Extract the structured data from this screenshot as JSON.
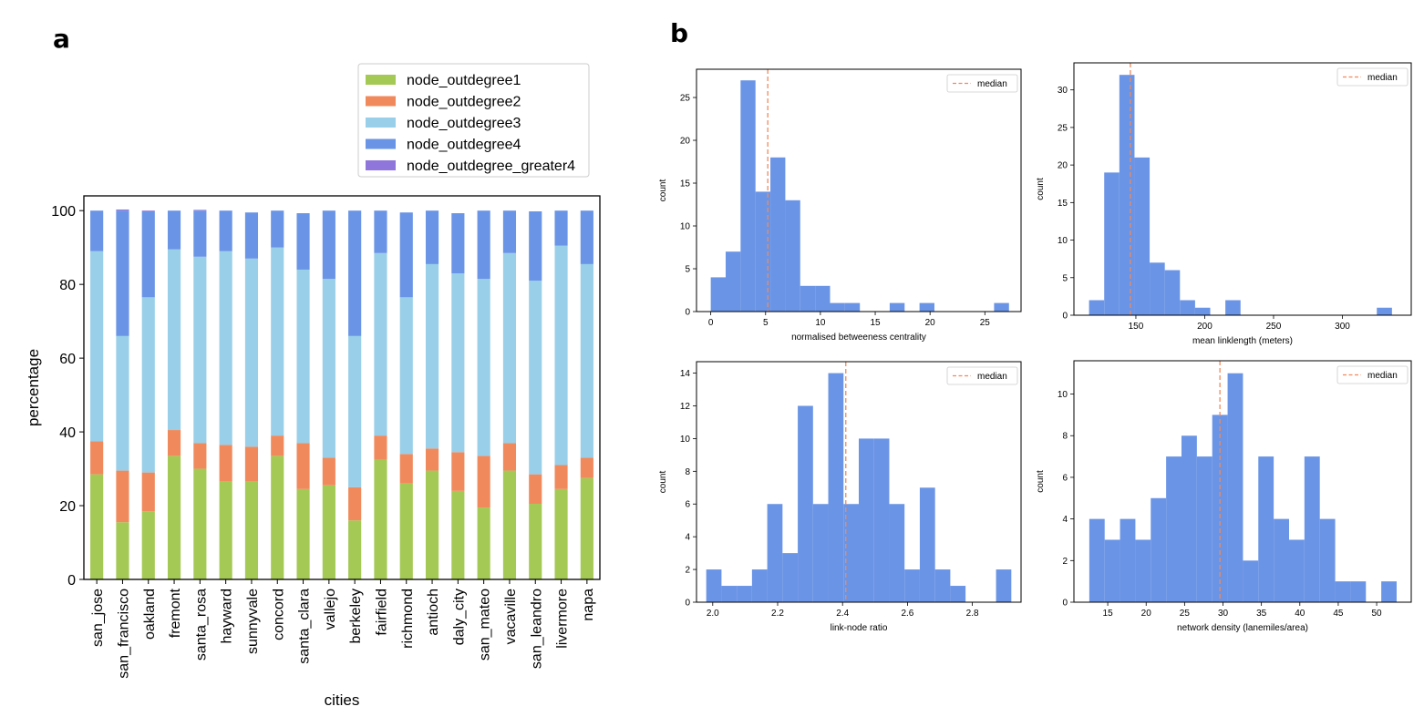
{
  "panels": {
    "a": "a",
    "b": "b"
  },
  "colors": {
    "outdeg1": "#a4c955",
    "outdeg2": "#f08a5d",
    "outdeg3": "#99cfe8",
    "outdeg4": "#6a94e5",
    "outdeg_g4": "#8f76da",
    "hist": "#6a94e5",
    "median": "#f08a5d"
  },
  "chart_data": [
    {
      "type": "bar",
      "stacked": true,
      "title": "",
      "xlabel": "cities",
      "ylabel": "percentage",
      "ylim": [
        0,
        104
      ],
      "yticks": [
        0,
        20,
        40,
        60,
        80,
        100
      ],
      "legend_position": "top-right",
      "categories": [
        "san_jose",
        "san_francisco",
        "oakland",
        "fremont",
        "santa_rosa",
        "hayward",
        "sunnyvale",
        "concord",
        "santa_clara",
        "vallejo",
        "berkeley",
        "fairfield",
        "richmond",
        "antioch",
        "daly_city",
        "san_mateo",
        "vacaville",
        "san_leandro",
        "livermore",
        "napa"
      ],
      "series": [
        {
          "name": "node_outdegree1",
          "values": [
            28.5,
            15.5,
            18.5,
            33.5,
            30,
            26.5,
            26.5,
            33.5,
            24.5,
            25.5,
            16,
            32.5,
            26,
            29.5,
            24,
            19.5,
            29.5,
            20.5,
            24.5,
            27.5
          ]
        },
        {
          "name": "node_outdegree2",
          "values": [
            9,
            14,
            10.5,
            7,
            7,
            10,
            9.5,
            5.5,
            12.5,
            7.5,
            9,
            6.5,
            8,
            6,
            10.5,
            14,
            7.5,
            8,
            6.5,
            5.5
          ]
        },
        {
          "name": "node_outdegree3",
          "values": [
            51.5,
            36.5,
            47.5,
            49,
            50.5,
            52.5,
            51,
            51,
            47,
            48.5,
            41,
            49.5,
            42.5,
            50,
            48.5,
            48,
            51.5,
            52.5,
            59.5,
            52.5
          ]
        },
        {
          "name": "node_outdegree4",
          "values": [
            11,
            34,
            23.3,
            10.5,
            12.5,
            11,
            12.5,
            10,
            15.3,
            18.5,
            34,
            11.5,
            23,
            14.5,
            16.3,
            18.5,
            11.5,
            18.8,
            9.5,
            14.5
          ]
        },
        {
          "name": "node_outdegree_greater4",
          "values": [
            0,
            0.3,
            0.2,
            0,
            0.2,
            0,
            0,
            0,
            0,
            0,
            0,
            0,
            0,
            0,
            0,
            0,
            0,
            0,
            0,
            0
          ]
        }
      ]
    },
    {
      "type": "bar",
      "subtype": "histogram",
      "xlabel": "normalised betweeness centrality",
      "ylabel": "count",
      "xlim": [
        -1.3,
        28.3
      ],
      "ylim": [
        0,
        28.3
      ],
      "xticks": [
        0,
        5,
        10,
        15,
        20,
        25
      ],
      "yticks": [
        0,
        5,
        10,
        15,
        20,
        25
      ],
      "bin_edges": [
        0,
        1.36,
        2.72,
        4.08,
        5.44,
        6.8,
        8.16,
        9.52,
        10.88,
        12.24,
        13.6,
        14.96,
        16.32,
        17.68,
        19.04,
        20.4,
        21.76,
        23.12,
        24.48,
        25.84,
        27.2
      ],
      "counts": [
        4,
        7,
        27,
        14,
        18,
        13,
        3,
        3,
        1,
        1,
        0,
        0,
        1,
        0,
        1,
        0,
        0,
        0,
        0,
        1
      ],
      "median": 5.2,
      "legend": "median"
    },
    {
      "type": "bar",
      "subtype": "histogram",
      "xlabel": "mean linklength (meters)",
      "ylabel": "count",
      "xlim": [
        105,
        350
      ],
      "ylim": [
        0,
        33.6
      ],
      "xticks": [
        150,
        200,
        250,
        300
      ],
      "yticks": [
        0,
        5,
        10,
        15,
        20,
        25,
        30
      ],
      "bin_edges": [
        116,
        127,
        138,
        149,
        160,
        171,
        182,
        193,
        204,
        215,
        226,
        237,
        248,
        259,
        270,
        281,
        292,
        303,
        314,
        325,
        336
      ],
      "counts": [
        2,
        19,
        32,
        21,
        7,
        6,
        2,
        1,
        0,
        2,
        0,
        0,
        0,
        0,
        0,
        0,
        0,
        0,
        0,
        1
      ],
      "median": 146,
      "legend": "median"
    },
    {
      "type": "bar",
      "subtype": "histogram",
      "xlabel": "link-node ratio",
      "ylabel": "count",
      "xlim": [
        1.95,
        2.95
      ],
      "ylim": [
        0,
        14.7
      ],
      "xticks": [
        2.0,
        2.2,
        2.4,
        2.6,
        2.8
      ],
      "yticks": [
        0,
        2,
        4,
        6,
        8,
        10,
        12,
        14
      ],
      "bin_edges": [
        1.98,
        2.027,
        2.074,
        2.121,
        2.168,
        2.215,
        2.262,
        2.309,
        2.356,
        2.403,
        2.45,
        2.497,
        2.544,
        2.591,
        2.638,
        2.685,
        2.732,
        2.779,
        2.826,
        2.873,
        2.92
      ],
      "counts": [
        2,
        1,
        1,
        2,
        6,
        3,
        12,
        6,
        14,
        6,
        10,
        10,
        6,
        2,
        7,
        2,
        1,
        0,
        0,
        2
      ],
      "median": 2.41,
      "legend": "median"
    },
    {
      "type": "bar",
      "subtype": "histogram",
      "xlabel": "network density (lanemiles/area)",
      "ylabel": "count",
      "xlim": [
        10.6,
        54.5
      ],
      "ylim": [
        0,
        11.6
      ],
      "xticks": [
        15,
        20,
        25,
        30,
        35,
        40,
        45,
        50
      ],
      "yticks": [
        0,
        2,
        4,
        6,
        8,
        10
      ],
      "bin_edges": [
        12.6,
        14.6,
        16.6,
        18.6,
        20.6,
        22.6,
        24.6,
        26.6,
        28.6,
        30.6,
        32.6,
        34.6,
        36.6,
        38.6,
        40.6,
        42.6,
        44.6,
        46.6,
        48.6,
        50.6,
        52.6
      ],
      "counts": [
        4,
        3,
        4,
        3,
        5,
        7,
        8,
        7,
        9,
        11,
        2,
        7,
        4,
        3,
        7,
        4,
        1,
        1,
        0,
        1
      ],
      "median": 29.6,
      "legend": "median"
    }
  ]
}
